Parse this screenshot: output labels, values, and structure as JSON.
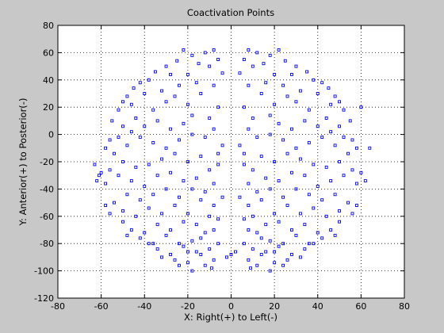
{
  "chart_data": {
    "type": "scatter",
    "title": "Coactivation Points",
    "xlabel": "X: Right(+) to Left(-)",
    "ylabel": "Y: Anterior(+) to Posterior(-)",
    "xlim": [
      -80,
      80
    ],
    "ylim": [
      -120,
      80
    ],
    "xticks": [
      -80,
      -60,
      -40,
      -20,
      0,
      20,
      40,
      60,
      80
    ],
    "yticks": [
      -120,
      -100,
      -80,
      -60,
      -40,
      -20,
      0,
      20,
      40,
      60,
      80
    ],
    "grid": true,
    "marker": "square",
    "marker_color": "#0000ff",
    "background": "#c8c8c8",
    "series": [
      {
        "x": [
          -8,
          -12,
          -18,
          -22,
          -6,
          -10,
          -4,
          -15,
          -25,
          -30,
          -28,
          -35,
          -38,
          -42,
          -45,
          -48,
          -50,
          -20,
          -16,
          -24,
          -32,
          -40,
          -46,
          -52,
          -55,
          -50,
          -44,
          -36,
          -30,
          -26,
          -20,
          -14,
          -8,
          -6,
          -10,
          -18,
          -22,
          -28,
          -34,
          -40,
          -46,
          -52,
          -56,
          -58,
          -54,
          -48,
          -42,
          -36,
          -30,
          -24,
          -18,
          -12,
          -8,
          -4,
          -6,
          -14,
          -20,
          -26,
          -32,
          -38,
          -44,
          -50,
          -56,
          -60,
          -62,
          -58,
          -52,
          -46,
          -40,
          -34,
          -28,
          -22,
          -16,
          -10,
          -6,
          -8,
          -12,
          -18,
          -24,
          -30,
          -36,
          -42,
          -48,
          -54,
          -58,
          -56,
          -50,
          -44,
          -38,
          -32,
          -26,
          -20,
          -14,
          -8,
          -4,
          -6,
          -10,
          -16,
          -22,
          -28,
          -34,
          -40,
          -46,
          -50,
          -48,
          -42,
          -36,
          -30,
          -24,
          -18,
          -12,
          -8,
          -10,
          -16,
          -22,
          -28,
          -34,
          -38,
          -32,
          -26,
          -20,
          -14,
          -8,
          -6,
          -12,
          -18,
          -24,
          -20,
          -14,
          -9,
          8,
          12,
          18,
          22,
          6,
          10,
          4,
          15,
          25,
          30,
          28,
          35,
          38,
          42,
          45,
          48,
          50,
          20,
          16,
          24,
          32,
          40,
          46,
          52,
          55,
          50,
          44,
          36,
          30,
          26,
          20,
          14,
          8,
          6,
          10,
          18,
          22,
          28,
          34,
          40,
          46,
          52,
          56,
          58,
          54,
          48,
          42,
          36,
          30,
          24,
          18,
          12,
          8,
          4,
          6,
          14,
          20,
          26,
          32,
          38,
          44,
          50,
          56,
          60,
          62,
          58,
          52,
          46,
          40,
          34,
          28,
          22,
          16,
          10,
          6,
          8,
          12,
          18,
          24,
          30,
          36,
          42,
          48,
          54,
          58,
          56,
          50,
          44,
          38,
          32,
          26,
          20,
          14,
          8,
          4,
          6,
          10,
          16,
          22,
          28,
          34,
          40,
          46,
          50,
          48,
          42,
          36,
          30,
          24,
          18,
          12,
          8,
          10,
          16,
          22,
          28,
          34,
          38,
          32,
          26,
          20,
          14,
          8,
          6,
          12,
          18,
          24,
          20,
          14,
          9,
          0,
          2,
          -2,
          64,
          -61,
          60,
          -63
        ],
        "y": [
          62,
          60,
          58,
          62,
          55,
          50,
          45,
          52,
          54,
          50,
          44,
          46,
          40,
          38,
          34,
          28,
          24,
          44,
          38,
          36,
          32,
          30,
          22,
          18,
          10,
          6,
          12,
          18,
          24,
          28,
          22,
          30,
          36,
          20,
          12,
          14,
          8,
          4,
          10,
          6,
          2,
          -2,
          -4,
          -10,
          -14,
          -8,
          -2,
          -6,
          -10,
          -4,
          0,
          -2,
          4,
          -8,
          -14,
          -16,
          -20,
          -14,
          -18,
          -22,
          -24,
          -20,
          -26,
          -28,
          -34,
          -36,
          -30,
          -34,
          -38,
          -30,
          -28,
          -34,
          -32,
          -26,
          -22,
          -36,
          -42,
          -40,
          -46,
          -40,
          -44,
          -48,
          -44,
          -50,
          -52,
          -58,
          -56,
          -60,
          -54,
          -58,
          -52,
          -58,
          -48,
          -52,
          -46,
          -62,
          -60,
          -66,
          -64,
          -70,
          -66,
          -72,
          -70,
          -64,
          -74,
          -76,
          -80,
          -74,
          -80,
          -78,
          -72,
          -70,
          -84,
          -86,
          -82,
          -88,
          -84,
          -80,
          -90,
          -92,
          -94,
          -88,
          -92,
          -80,
          -96,
          -100,
          -96,
          -86,
          -76,
          -98,
          62,
          60,
          58,
          62,
          55,
          50,
          45,
          52,
          54,
          50,
          44,
          46,
          40,
          38,
          34,
          28,
          24,
          44,
          38,
          36,
          32,
          30,
          22,
          18,
          10,
          6,
          12,
          18,
          24,
          28,
          22,
          30,
          36,
          20,
          12,
          14,
          8,
          4,
          10,
          6,
          2,
          -2,
          -4,
          -10,
          -14,
          -8,
          -2,
          -6,
          -10,
          -4,
          0,
          -2,
          4,
          -8,
          -14,
          -16,
          -20,
          -14,
          -18,
          -22,
          -24,
          -20,
          -26,
          -28,
          -34,
          -36,
          -30,
          -34,
          -38,
          -30,
          -28,
          -34,
          -32,
          -26,
          -22,
          -36,
          -42,
          -40,
          -46,
          -40,
          -44,
          -48,
          -44,
          -50,
          -52,
          -58,
          -56,
          -60,
          -54,
          -58,
          -52,
          -58,
          -48,
          -52,
          -46,
          -62,
          -60,
          -66,
          -64,
          -70,
          -66,
          -72,
          -70,
          -64,
          -74,
          -76,
          -80,
          -74,
          -80,
          -78,
          -72,
          -70,
          -84,
          -86,
          -82,
          -88,
          -84,
          -80,
          -90,
          -92,
          -94,
          -88,
          -92,
          -80,
          -96,
          -100,
          -96,
          -86,
          -76,
          -98,
          -88,
          -86,
          -90,
          -10,
          -30,
          20,
          -22
        ]
      }
    ]
  }
}
